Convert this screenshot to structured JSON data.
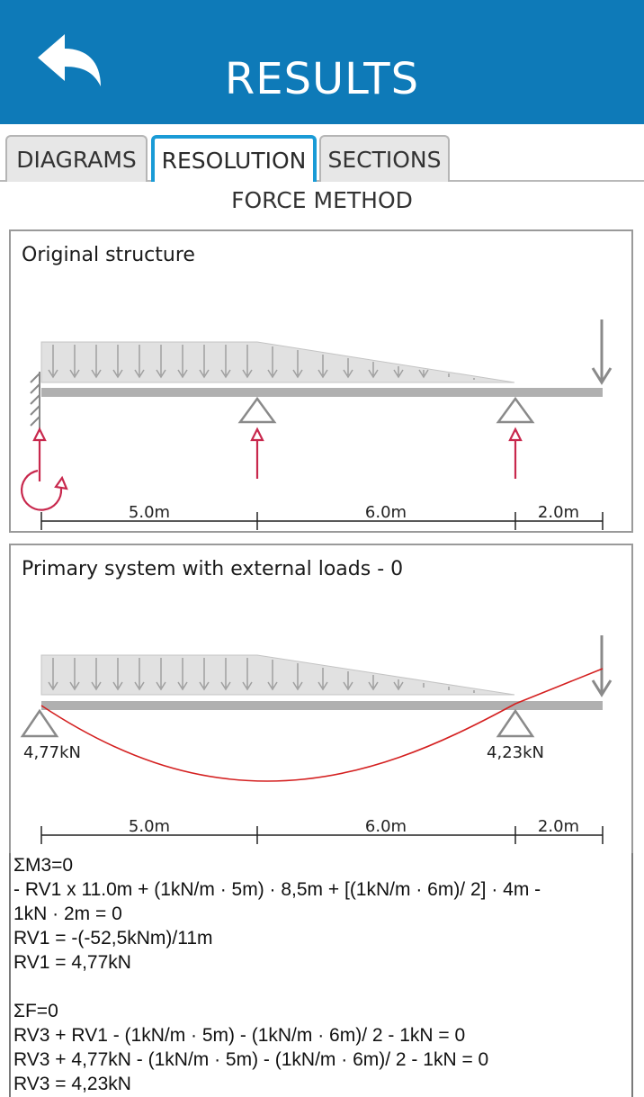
{
  "header": {
    "title": "RESULTS",
    "back_icon": "back-arrow-icon"
  },
  "tabs": [
    {
      "label": "DIAGRAMS",
      "active": false
    },
    {
      "label": "RESOLUTION",
      "active": true
    },
    {
      "label": "SECTIONS",
      "active": false
    }
  ],
  "section_title": "FORCE METHOD",
  "panel1": {
    "title": "Original structure",
    "dims": [
      "5.0m",
      "6.0m",
      "2.0m"
    ]
  },
  "panel2": {
    "title": "Primary system with external loads - 0",
    "reaction_left": "4,77kN",
    "reaction_right": "4,23kN",
    "dims": [
      "5.0m",
      "6.0m",
      "2.0m"
    ]
  },
  "calc_lines": [
    "ΣM3=0",
    "- RV1 x 11.0m + (1kN/m · 5m) · 8,5m + [(1kN/m · 6m)/ 2] · 4m -",
    "1kN · 2m = 0",
    "RV1 = -(-52,5kNm)/11m",
    "RV1 = 4,77kN",
    "",
    "ΣF=0",
    "RV3 + RV1 - (1kN/m · 5m) - (1kN/m · 6m)/ 2 - 1kN = 0",
    "RV3 + 4,77kN - (1kN/m · 5m) - (1kN/m · 6m)/ 2 - 1kN = 0",
    "RV3 = 4,23kN"
  ],
  "colors": {
    "header_bg": "#0e7ab8",
    "tab_active_border": "#1a9bd6",
    "reaction_arrows": "#c8284d",
    "deflection_curve": "#d42020"
  }
}
